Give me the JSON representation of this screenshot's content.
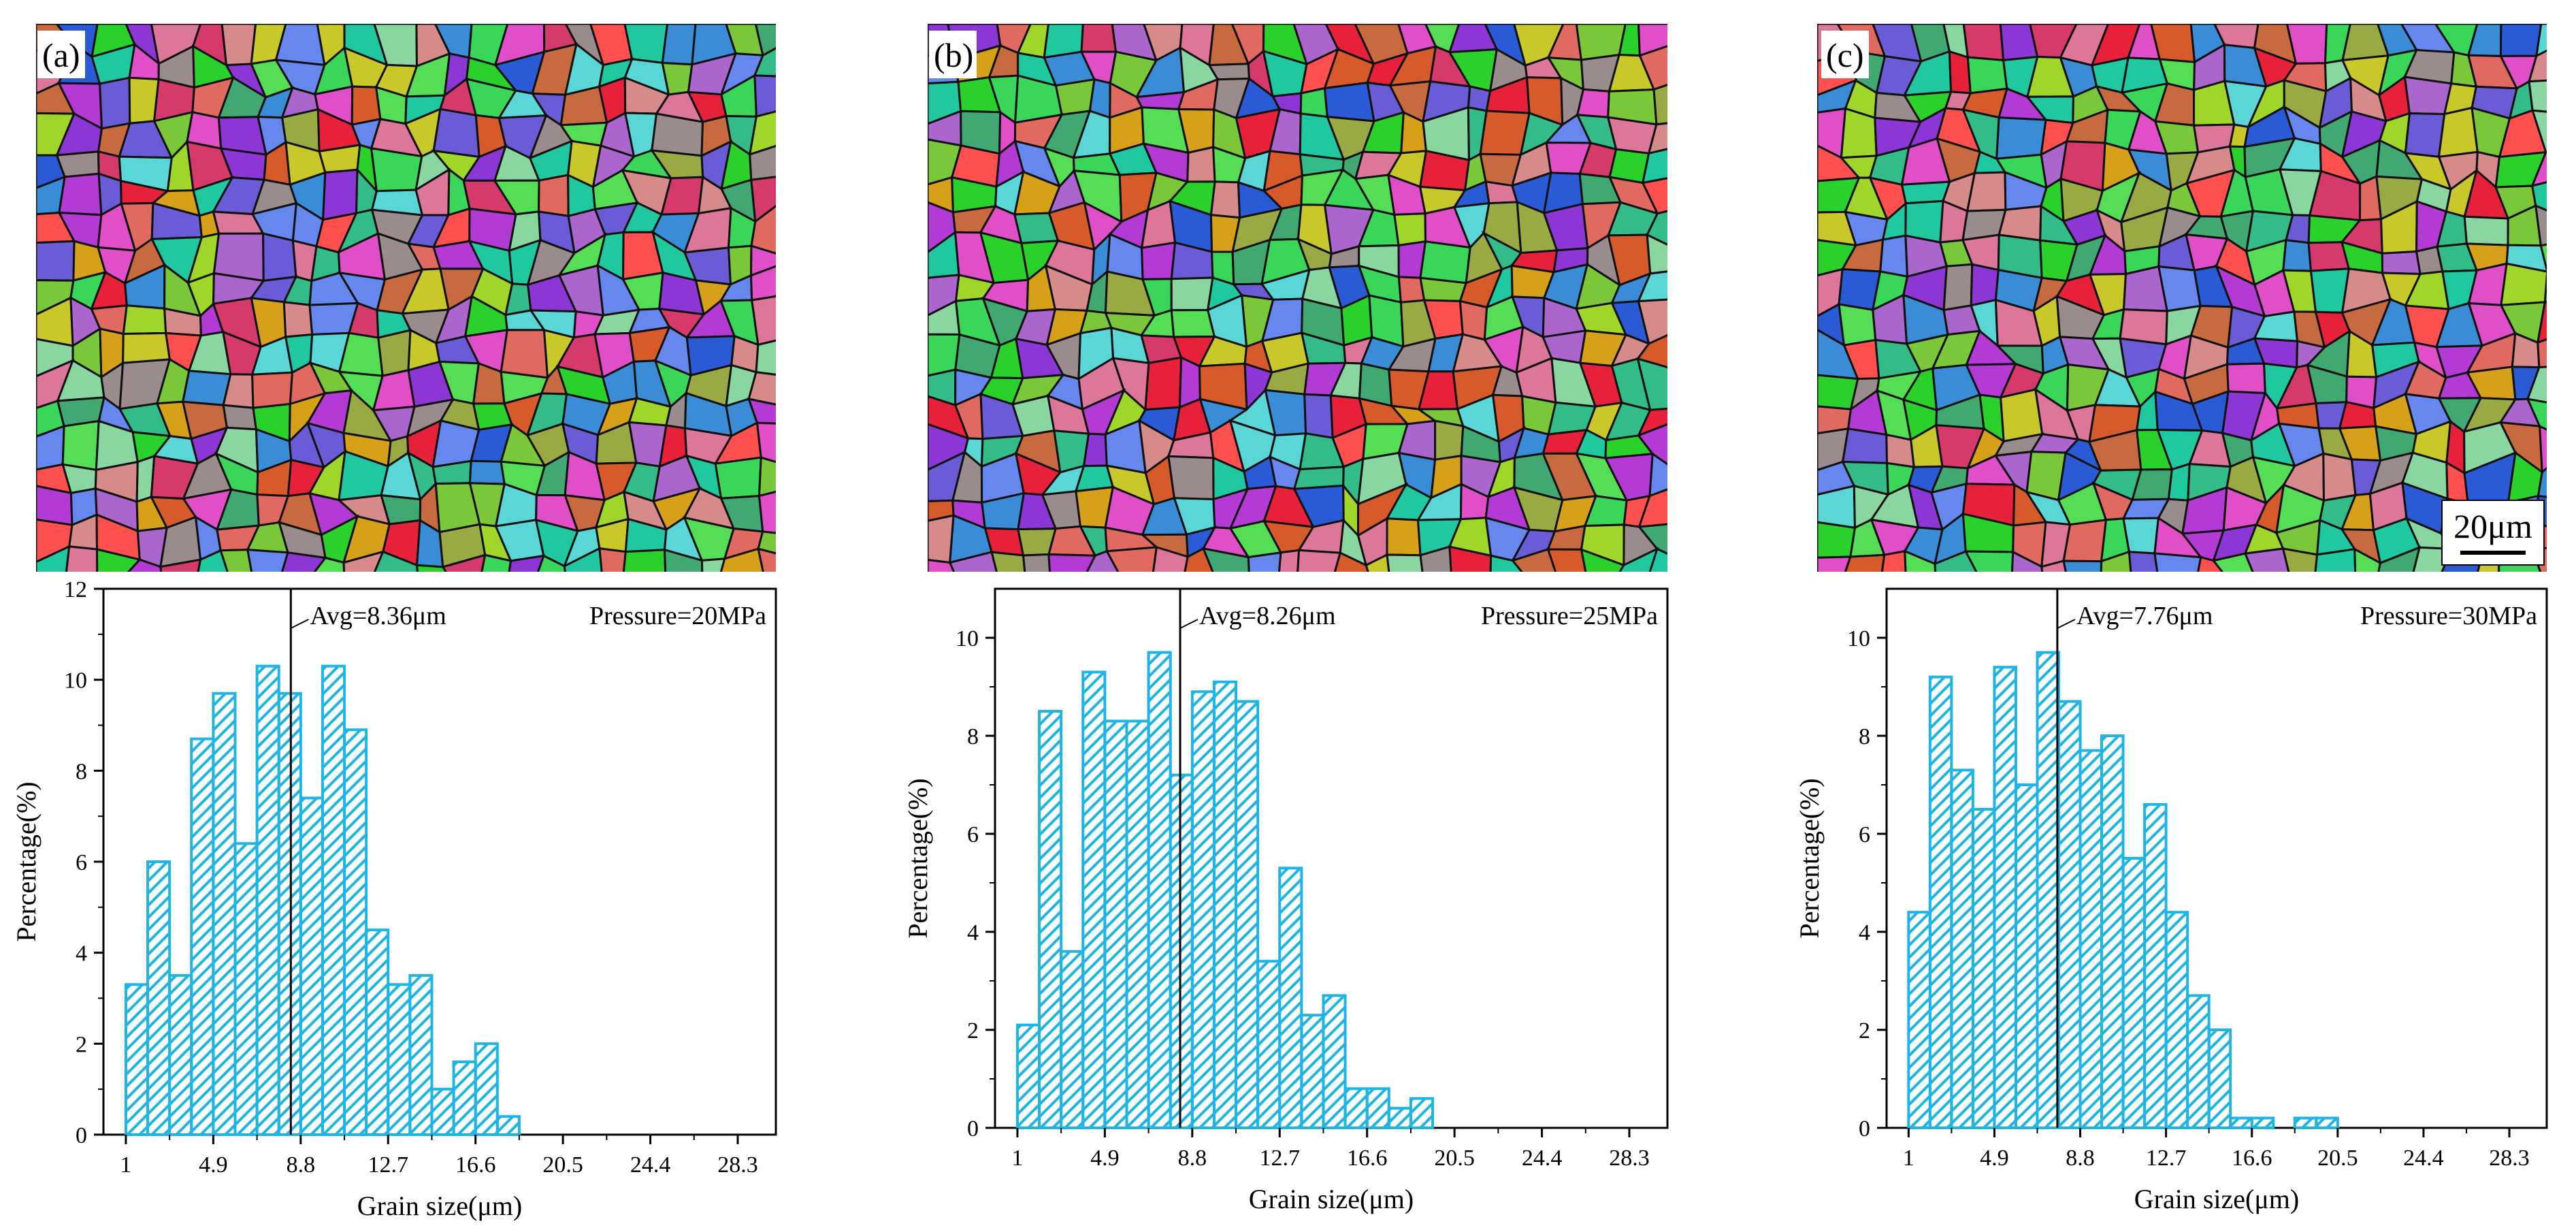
{
  "figure": {
    "scale_bar_label": "20μm"
  },
  "colors": {
    "bar_stroke": "#1eb4e6",
    "axis": "#000000",
    "background": "#ffffff",
    "grain_boundary": "#111111"
  },
  "chart_data": [
    {
      "type": "bar",
      "panel_label": "(a)",
      "micrograph": "EBSD orientation map (a)",
      "avg_label": "Avg=8.36μm",
      "avg_value": 8.36,
      "pressure_label": "Pressure=20MPa",
      "xlabel": "Grain size(μm)",
      "ylabel": "Percentage(%)",
      "xlim": [
        0,
        30
      ],
      "ylim": [
        0,
        12
      ],
      "x_ticks": [
        1,
        4.9,
        8.8,
        12.7,
        16.6,
        20.5,
        24.4,
        28.3
      ],
      "x_tick_labels": [
        "1",
        "4.9",
        "8.8",
        "12.7",
        "16.6",
        "20.5",
        "24.4",
        "28.3"
      ],
      "y_ticks": [
        0,
        2,
        4,
        6,
        8,
        10,
        12
      ],
      "y_tick_labels": [
        "0",
        "2",
        "4",
        "6",
        "8",
        "10",
        "12"
      ],
      "bin_start": 1,
      "bin_width": 0.975,
      "values": [
        3.3,
        6.0,
        3.5,
        8.7,
        9.7,
        6.4,
        10.3,
        9.7,
        7.4,
        10.3,
        8.9,
        4.5,
        3.3,
        3.5,
        1.0,
        1.6,
        2.0,
        0.4
      ]
    },
    {
      "type": "bar",
      "panel_label": "(b)",
      "micrograph": "EBSD orientation map (b)",
      "avg_label": "Avg=8.26μm",
      "avg_value": 8.26,
      "pressure_label": "Pressure=25MPa",
      "xlabel": "Grain size(μm)",
      "ylabel": "Percentage(%)",
      "xlim": [
        0,
        30
      ],
      "ylim": [
        0,
        11
      ],
      "x_ticks": [
        1,
        4.9,
        8.8,
        12.7,
        16.6,
        20.5,
        24.4,
        28.3
      ],
      "x_tick_labels": [
        "1",
        "4.9",
        "8.8",
        "12.7",
        "16.6",
        "20.5",
        "24.4",
        "28.3"
      ],
      "y_ticks": [
        0,
        2,
        4,
        6,
        8,
        10
      ],
      "y_tick_labels": [
        "0",
        "2",
        "4",
        "6",
        "8",
        "10"
      ],
      "bin_start": 1,
      "bin_width": 0.975,
      "values": [
        2.1,
        8.5,
        3.6,
        9.3,
        8.3,
        8.3,
        9.7,
        7.2,
        8.9,
        9.1,
        8.7,
        3.4,
        5.3,
        2.3,
        2.7,
        0.8,
        0.8,
        0.4,
        0.6
      ]
    },
    {
      "type": "bar",
      "panel_label": "(c)",
      "micrograph": "EBSD orientation map (c)",
      "avg_label": "Avg=7.76μm",
      "avg_value": 7.76,
      "pressure_label": "Pressure=30MPa",
      "xlabel": "Grain size(μm)",
      "ylabel": "Percentage(%)",
      "xlim": [
        0,
        30
      ],
      "ylim": [
        0,
        11
      ],
      "x_ticks": [
        1,
        4.9,
        8.8,
        12.7,
        16.6,
        20.5,
        24.4,
        28.3
      ],
      "x_tick_labels": [
        "1",
        "4.9",
        "8.8",
        "12.7",
        "16.6",
        "20.5",
        "24.4",
        "28.3"
      ],
      "y_ticks": [
        0,
        2,
        4,
        6,
        8,
        10
      ],
      "y_tick_labels": [
        "0",
        "2",
        "4",
        "6",
        "8",
        "10"
      ],
      "bin_start": 1,
      "bin_width": 0.975,
      "values": [
        4.4,
        9.2,
        7.3,
        6.5,
        9.4,
        7.0,
        9.7,
        8.7,
        7.7,
        8.0,
        5.5,
        6.6,
        4.4,
        2.7,
        2.0,
        0.2,
        0.2,
        0.0,
        0.2,
        0.2
      ]
    }
  ]
}
